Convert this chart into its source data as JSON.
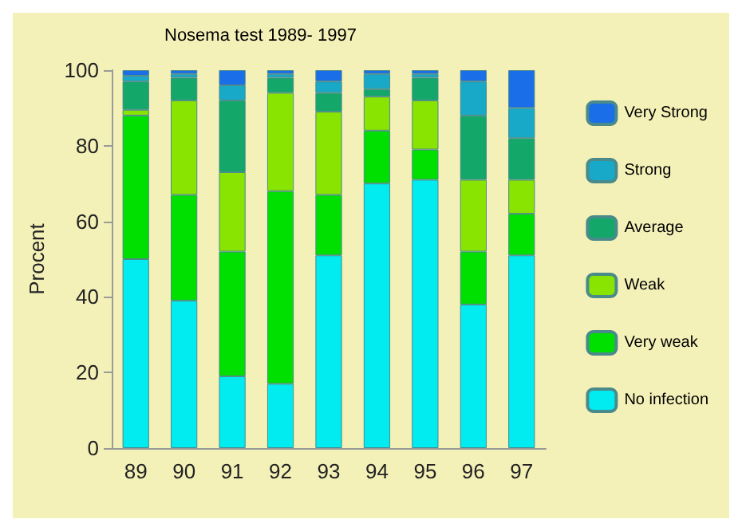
{
  "chart_data": {
    "type": "bar",
    "title": "Nosema test 1989- 1997",
    "ylabel": "Procent",
    "stacked": true,
    "legend": "right",
    "grid": false,
    "categories": [
      "89",
      "90",
      "91",
      "92",
      "93",
      "94",
      "95",
      "96",
      "97"
    ],
    "ylim": [
      0,
      100
    ],
    "yticks": [
      0,
      20,
      40,
      60,
      80,
      100
    ],
    "series": [
      {
        "name": "No infection",
        "color": "#00ecf0",
        "values": [
          50,
          39,
          19,
          17,
          51,
          70,
          71,
          38,
          51
        ]
      },
      {
        "name": "Very weak",
        "color": "#00e000",
        "values": [
          38,
          28,
          33,
          51,
          16,
          14,
          8,
          14,
          11
        ]
      },
      {
        "name": "Weak",
        "color": "#88e400",
        "values": [
          1.5,
          25,
          21,
          26,
          22,
          9,
          13,
          19,
          9
        ]
      },
      {
        "name": "Average",
        "color": "#13a86a",
        "values": [
          7.5,
          6,
          19,
          4,
          5,
          2,
          6,
          17,
          11
        ]
      },
      {
        "name": "Strong",
        "color": "#19a9c8",
        "values": [
          1.5,
          1,
          4,
          1,
          3,
          4,
          1,
          9,
          8
        ]
      },
      {
        "name": "Very Strong",
        "color": "#1a6ee8",
        "values": [
          1.5,
          1,
          4,
          1,
          3,
          1,
          1,
          3,
          10
        ]
      }
    ]
  }
}
